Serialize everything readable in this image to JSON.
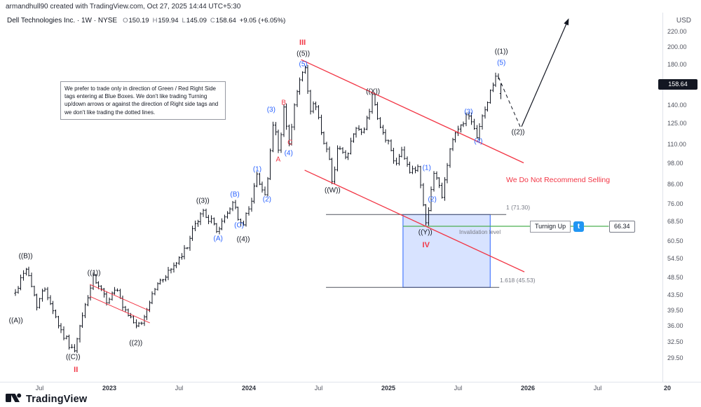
{
  "attribution": "armandhull90 created with TradingView.com, Oct 27, 2025 14:44 UTC+5:30",
  "legend": {
    "symbol_line": "Dell Technologies Inc. · 1W · NYSE",
    "o_label": "O",
    "o_value": "150.19",
    "h_label": "H",
    "h_value": "159.94",
    "l_label": "L",
    "l_value": "145.09",
    "c_label": "C",
    "c_value": "158.64",
    "change": "+9.05 (+6.05%)"
  },
  "price_axis": {
    "currency": "USD",
    "ticks": [
      "220.00",
      "200.00",
      "180.00",
      "140.00",
      "125.00",
      "110.00",
      "98.00",
      "86.00",
      "76.00",
      "68.50",
      "60.50",
      "54.50",
      "48.50",
      "43.50",
      "39.50",
      "36.00",
      "32.50",
      "29.50"
    ],
    "last_price": "158.64"
  },
  "time_axis": {
    "ticks": [
      {
        "label": "Jul",
        "t": 2022.5
      },
      {
        "label": "2023",
        "t": 2023,
        "major": true
      },
      {
        "label": "Jul",
        "t": 2023.5
      },
      {
        "label": "2024",
        "t": 2024,
        "major": true
      },
      {
        "label": "Jul",
        "t": 2024.5
      },
      {
        "label": "2025",
        "t": 2025,
        "major": true
      },
      {
        "label": "Jul",
        "t": 2025.5
      },
      {
        "label": "2026",
        "t": 2026,
        "major": true
      },
      {
        "label": "Jul",
        "t": 2026.5
      },
      {
        "label": "20",
        "t": 2027,
        "major": true
      }
    ]
  },
  "note_box": {
    "text": "We prefer to trade only in direction of Green / Red Right Side tags entering at Blue Boxes. We don't like trading Turning up/down arrows or against the direction of Right side tags and we don't like trading the dotted lines."
  },
  "annotations": {
    "no_sell_text": "We Do Not Recommend Selling",
    "invalidation_text": "Invalidation level",
    "turning_up_label": "Turnign Up",
    "t_badge": "t",
    "target_price_label": "66.34",
    "fib_1_label": "1 (71.30)",
    "fib_1618_label": "1.618 (45.53)"
  },
  "footer": {
    "brand": "TradingView"
  },
  "colors": {
    "wave_black": "#131722",
    "wave_blue": "#2962ff",
    "wave_red": "#f23645",
    "trend_red": "#f23645",
    "green_line": "#4caf50",
    "box_fill": "rgba(41,98,255,0.18)",
    "box_border": "#2962ff",
    "badge_bg": "#131722",
    "t_badge_bg": "#2196f3",
    "gray_text": "#787b86",
    "bar_color": "#131722"
  },
  "chart_data": {
    "type": "bar",
    "title": "Dell Technologies Inc. weekly chart with Elliott Wave count",
    "symbol": "Dell Technologies Inc.",
    "timeframe": "1W",
    "exchange": "NYSE",
    "unit": "USD",
    "scale": "log",
    "last_bar": {
      "o": 150.19,
      "h": 159.94,
      "l": 145.09,
      "c": 158.64,
      "change": 9.05,
      "change_pct": 6.05
    },
    "y_ticks": [
      220,
      200,
      180,
      140,
      125,
      110,
      98,
      86,
      76,
      68.5,
      60.5,
      54.5,
      48.5,
      43.5,
      39.5,
      36,
      32.5,
      29.5
    ],
    "x_axis": {
      "data_start": 2022.327,
      "data_end": 2025.808,
      "view_start": 2022.28,
      "view_end": 2027.05,
      "interval_weeks": 1
    },
    "price_pivots": [
      [
        2022.327,
        44
      ],
      [
        2022.4,
        52
      ],
      [
        2022.48,
        41
      ],
      [
        2022.54,
        45.5
      ],
      [
        2022.65,
        35
      ],
      [
        2022.75,
        30.5
      ],
      [
        2022.82,
        40
      ],
      [
        2022.885,
        48
      ],
      [
        2022.98,
        42
      ],
      [
        2023.05,
        45
      ],
      [
        2023.1,
        39.5
      ],
      [
        2023.22,
        35.5
      ],
      [
        2023.32,
        45
      ],
      [
        2023.42,
        50
      ],
      [
        2023.52,
        55
      ],
      [
        2023.62,
        67
      ],
      [
        2023.67,
        73
      ],
      [
        2023.78,
        64.5
      ],
      [
        2023.89,
        77.5
      ],
      [
        2023.95,
        65
      ],
      [
        2024.02,
        79
      ],
      [
        2024.06,
        91
      ],
      [
        2024.12,
        79.5
      ],
      [
        2024.18,
        128
      ],
      [
        2024.215,
        103
      ],
      [
        2024.25,
        138
      ],
      [
        2024.29,
        108
      ],
      [
        2024.34,
        150
      ],
      [
        2024.4,
        177
      ],
      [
        2024.445,
        131
      ],
      [
        2024.475,
        145
      ],
      [
        2024.52,
        117
      ],
      [
        2024.56,
        108
      ],
      [
        2024.6,
        87.5
      ],
      [
        2024.645,
        111
      ],
      [
        2024.7,
        99
      ],
      [
        2024.76,
        124
      ],
      [
        2024.82,
        116
      ],
      [
        2024.885,
        147
      ],
      [
        2024.94,
        121
      ],
      [
        2025.0,
        111
      ],
      [
        2025.05,
        97
      ],
      [
        2025.095,
        108
      ],
      [
        2025.16,
        91
      ],
      [
        2025.21,
        97
      ],
      [
        2025.27,
        67.5
      ],
      [
        2025.33,
        93
      ],
      [
        2025.385,
        81
      ],
      [
        2025.45,
        111
      ],
      [
        2025.52,
        124
      ],
      [
        2025.565,
        132
      ],
      [
        2025.63,
        115
      ],
      [
        2025.7,
        139
      ],
      [
        2025.765,
        167
      ],
      [
        2025.808,
        158.64
      ]
    ],
    "wave_labels": [
      {
        "text": "((A))",
        "t": 2022.33,
        "p": 37,
        "color": "black"
      },
      {
        "text": "((B))",
        "t": 2022.4,
        "p": 55,
        "color": "black"
      },
      {
        "text": "((C))",
        "t": 2022.74,
        "p": 29.6,
        "color": "black"
      },
      {
        "text": "II",
        "t": 2022.76,
        "p": 27.4,
        "color": "red",
        "major": true
      },
      {
        "text": "((1))",
        "t": 2022.89,
        "p": 49.8,
        "color": "black"
      },
      {
        "text": "((2))",
        "t": 2023.19,
        "p": 32.3,
        "color": "black"
      },
      {
        "text": "((3))",
        "t": 2023.67,
        "p": 77.5,
        "color": "black"
      },
      {
        "text": "(A)",
        "t": 2023.78,
        "p": 61.5,
        "color": "blue"
      },
      {
        "text": "(B)",
        "t": 2023.9,
        "p": 80.5,
        "color": "blue"
      },
      {
        "text": "(C)",
        "t": 2023.93,
        "p": 66.5,
        "color": "blue"
      },
      {
        "text": "((4))",
        "t": 2023.96,
        "p": 61,
        "color": "black"
      },
      {
        "text": "(1)",
        "t": 2024.06,
        "p": 94,
        "color": "blue"
      },
      {
        "text": "(2)",
        "t": 2024.13,
        "p": 78,
        "color": "blue"
      },
      {
        "text": "(3)",
        "t": 2024.16,
        "p": 136,
        "color": "blue"
      },
      {
        "text": "A",
        "t": 2024.21,
        "p": 100,
        "color": "red"
      },
      {
        "text": "B",
        "t": 2024.25,
        "p": 142,
        "color": "red"
      },
      {
        "text": "C",
        "t": 2024.295,
        "p": 111,
        "color": "red"
      },
      {
        "text": "(4)",
        "t": 2024.285,
        "p": 104,
        "color": "blue"
      },
      {
        "text": "III",
        "t": 2024.385,
        "p": 205,
        "color": "red",
        "major": true
      },
      {
        "text": "((5))",
        "t": 2024.39,
        "p": 192,
        "color": "black"
      },
      {
        "text": "(5)",
        "t": 2024.39,
        "p": 180,
        "color": "blue"
      },
      {
        "text": "((W))",
        "t": 2024.6,
        "p": 82.5,
        "color": "black"
      },
      {
        "text": "((X))",
        "t": 2024.89,
        "p": 152,
        "color": "black"
      },
      {
        "text": "(1)",
        "t": 2025.275,
        "p": 95,
        "color": "blue"
      },
      {
        "text": "(2)",
        "t": 2025.315,
        "p": 78,
        "color": "blue"
      },
      {
        "text": "((Y))",
        "t": 2025.265,
        "p": 63.8,
        "color": "black"
      },
      {
        "text": "IV",
        "t": 2025.27,
        "p": 59,
        "color": "red",
        "major": true
      },
      {
        "text": "(3)",
        "t": 2025.575,
        "p": 134,
        "color": "blue"
      },
      {
        "text": "(4)",
        "t": 2025.645,
        "p": 112,
        "color": "blue"
      },
      {
        "text": "(5)",
        "t": 2025.81,
        "p": 181,
        "color": "blue"
      },
      {
        "text": "((1))",
        "t": 2025.81,
        "p": 194,
        "color": "black"
      },
      {
        "text": "((2))",
        "t": 2025.93,
        "p": 118,
        "color": "black"
      }
    ],
    "trendlines": [
      {
        "name": "wave-two-channel-upper",
        "t1": 2022.86,
        "p1": 46.4,
        "t2": 2023.29,
        "p2": 39.4,
        "color": "red",
        "width": 1
      },
      {
        "name": "wave-two-channel-lower",
        "t1": 2022.86,
        "p1": 43.1,
        "t2": 2023.29,
        "p2": 36.6,
        "color": "red",
        "width": 1
      },
      {
        "name": "bearish-trendline-upper",
        "t1": 2024.375,
        "p1": 185,
        "t2": 2025.97,
        "p2": 98,
        "color": "red",
        "width": 1.3
      },
      {
        "name": "bearish-trendline-lower",
        "t1": 2024.4,
        "p1": 93.7,
        "t2": 2025.975,
        "p2": 50.1,
        "color": "red",
        "width": 1.3
      }
    ],
    "fib_levels": [
      {
        "label": "1 (71.30)",
        "price": 71.3,
        "t1": 2024.553,
        "t2": 2025.845
      },
      {
        "label": "1.618 (45.53)",
        "price": 45.53,
        "t1": 2024.553,
        "t2": 2025.795
      }
    ],
    "invalidation_line": {
      "price": 66.34,
      "label": "66.34",
      "t1": 2025.105,
      "t2": 2026.58
    },
    "blue_box": {
      "t1": 2025.105,
      "t2": 2025.73,
      "price_top": 71.3,
      "price_bottom": 45.53
    },
    "dashed_pullback": {
      "t1": 2025.79,
      "p1": 166,
      "t2": 2025.945,
      "p2": 122.5
    },
    "rally_arrow": {
      "t1": 2025.955,
      "p1": 122.5,
      "t2": 2026.29,
      "p2": 237
    }
  }
}
